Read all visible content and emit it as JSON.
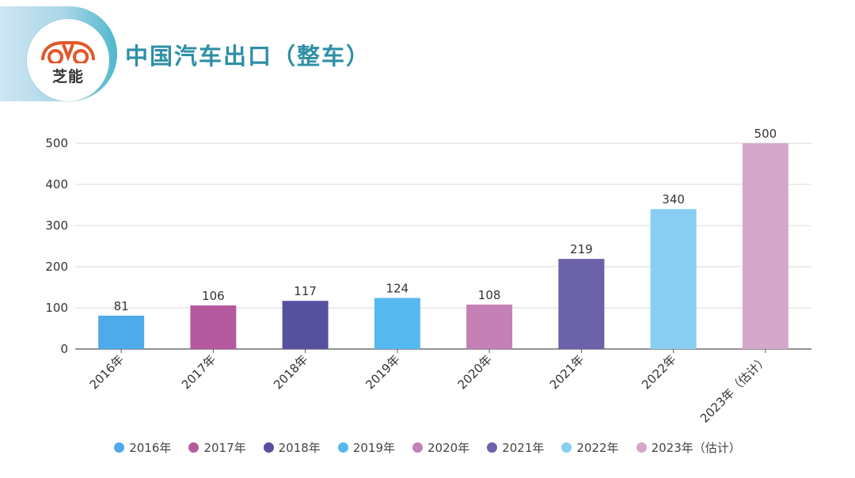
{
  "header": {
    "brand_name": "芝能",
    "title": "中国汽车出口（整车）"
  },
  "chart_data": {
    "type": "bar",
    "title": "",
    "xlabel": "",
    "ylabel": "",
    "ylim": [
      0,
      500
    ],
    "yticks": [
      0,
      100,
      200,
      300,
      400,
      500
    ],
    "grid": true,
    "legend_position": "bottom",
    "categories": [
      "2016年",
      "2017年",
      "2018年",
      "2019年",
      "2020年",
      "2021年",
      "2022年",
      "2023年（估计）"
    ],
    "values": [
      81,
      106,
      117,
      124,
      108,
      219,
      340,
      500
    ],
    "colors": [
      "#4eaae8",
      "#b65a9f",
      "#56509f",
      "#55b9ef",
      "#c580b5",
      "#6b62a9",
      "#88cef2",
      "#d5a7cb"
    ]
  }
}
